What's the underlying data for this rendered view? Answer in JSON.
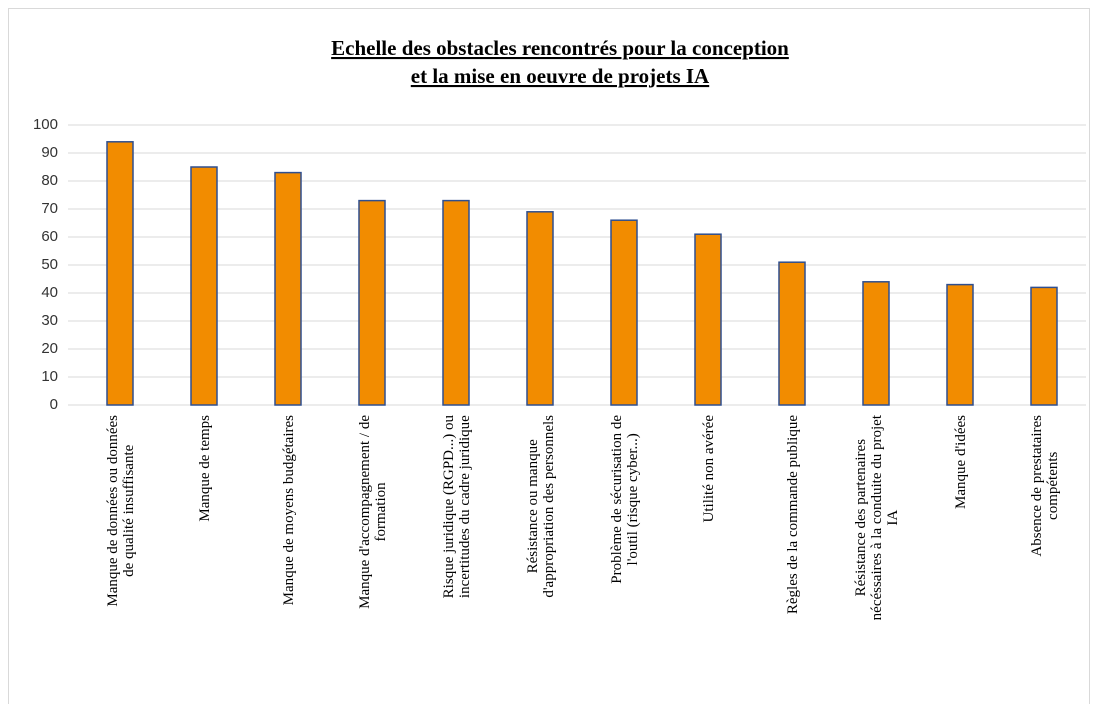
{
  "chart_data": {
    "type": "bar",
    "title": [
      "Echelle des obstacles rencontrés pour la conception",
      "et la mise en oeuvre de projets IA"
    ],
    "categories": [
      [
        "Manque de données ou données",
        "de qualité insuffisante"
      ],
      [
        "Manque de temps"
      ],
      [
        "Manque de moyens budgétaires"
      ],
      [
        "Manque d'accompagnement / de",
        "formation"
      ],
      [
        "Risque juridique (RGPD...) ou",
        "incertitudes du cadre juridique"
      ],
      [
        "Résistance ou manque",
        "d'appropriation des personnels"
      ],
      [
        "Problème de sécurisation de",
        "l'outil (risque cyber...)"
      ],
      [
        "Utilité non avérée"
      ],
      [
        "Règles de la commande publique"
      ],
      [
        "Résistance des partenaires",
        "nécéssaires à la conduite du projet",
        "IA"
      ],
      [
        "Manque d'idées"
      ],
      [
        "Absence de prestataires",
        "compétents"
      ]
    ],
    "values": [
      94,
      85,
      83,
      73,
      73,
      69,
      66,
      61,
      51,
      44,
      43,
      42
    ],
    "color": "#f28c00",
    "ylim": [
      0,
      100
    ],
    "yticks": [
      0,
      10,
      20,
      30,
      40,
      50,
      60,
      70,
      80,
      90,
      100
    ],
    "grid": true
  }
}
